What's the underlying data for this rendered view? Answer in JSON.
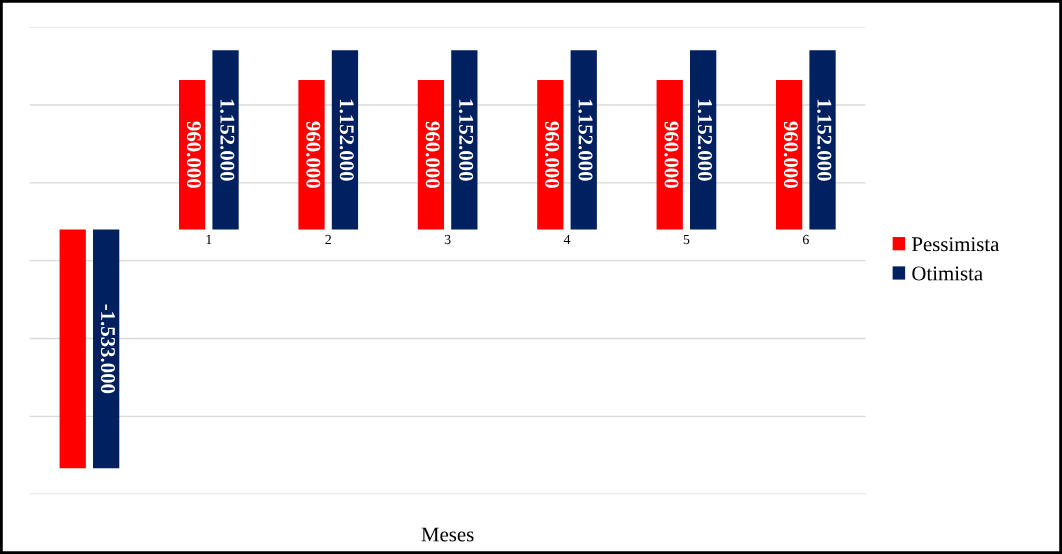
{
  "chart_data": {
    "type": "bar",
    "xlabel": "Meses",
    "categories": [
      null,
      "1",
      "2",
      "3",
      "4",
      "5",
      "6"
    ],
    "series": [
      {
        "name": "Pessimista",
        "color": "#ff0000",
        "values": [
          -1533000,
          960000,
          960000,
          960000,
          960000,
          960000,
          960000
        ],
        "value_labels": [
          null,
          "960.000",
          "960.000",
          "960.000",
          "960.000",
          "960.000",
          "960.000"
        ]
      },
      {
        "name": "Otimista",
        "color": "#002060",
        "values": [
          -1533000,
          1152000,
          1152000,
          1152000,
          1152000,
          1152000,
          1152000
        ],
        "value_labels": [
          "-1.533.000",
          "1.152.000",
          "1.152.000",
          "1.152.000",
          "1.152.000",
          "1.152.000",
          "1.152.000"
        ]
      }
    ],
    "ylim": [
      -1700000,
      1300000
    ],
    "yticks": [
      {
        "value": -1700000,
        "label": null
      },
      {
        "value": -1200000,
        "label": null
      },
      {
        "value": -700000,
        "label": null
      },
      {
        "value": -200000,
        "label": null
      },
      {
        "value": 300000,
        "label": null
      },
      {
        "value": 800000,
        "label": null
      },
      {
        "value": 1300000,
        "label": null
      }
    ],
    "grid": "y",
    "legend": "right",
    "tick_labels": "x"
  }
}
